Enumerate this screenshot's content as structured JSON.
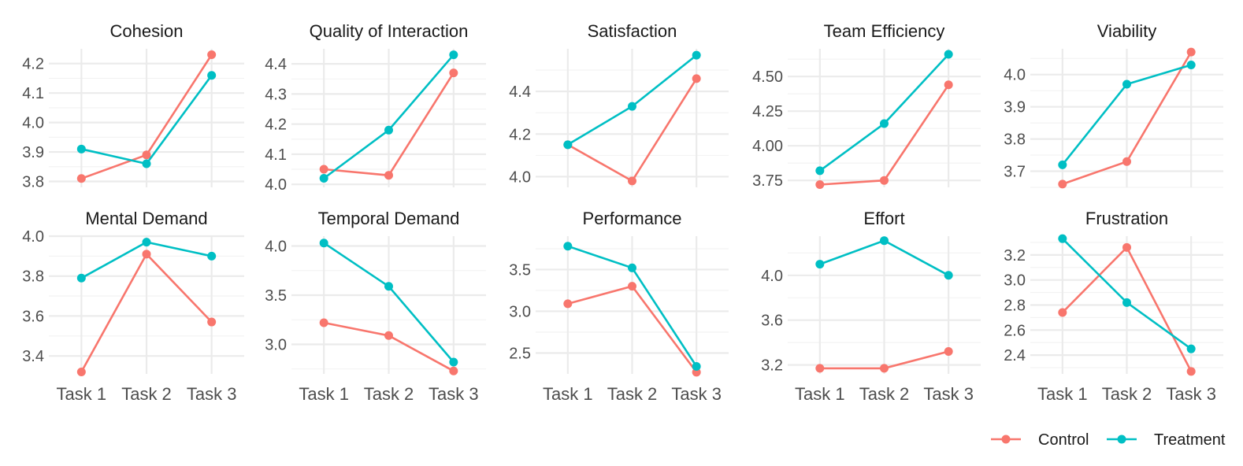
{
  "chart_data": {
    "type": "line",
    "categories": [
      "Task 1",
      "Task 2",
      "Task 3"
    ],
    "series_names": [
      "Control",
      "Treatment"
    ],
    "colors": {
      "Control": "#F8766D",
      "Treatment": "#00BFC4"
    },
    "legend_position": "bottom-right",
    "grid": true,
    "panels": [
      {
        "title": "Cohesion",
        "ylim": [
          3.78,
          4.25
        ],
        "yticks": [
          3.8,
          3.9,
          4.0,
          4.1,
          4.2
        ],
        "ytick_labels": [
          "3.8",
          "3.9",
          "4.0",
          "4.1",
          "4.2"
        ],
        "series": [
          {
            "name": "Control",
            "values": [
              3.81,
              3.89,
              4.23
            ]
          },
          {
            "name": "Treatment",
            "values": [
              3.91,
              3.86,
              4.16
            ]
          }
        ]
      },
      {
        "title": "Quality of Interaction",
        "ylim": [
          3.99,
          4.45
        ],
        "yticks": [
          4.0,
          4.1,
          4.2,
          4.3,
          4.4
        ],
        "ytick_labels": [
          "4.0",
          "4.1",
          "4.2",
          "4.3",
          "4.4"
        ],
        "series": [
          {
            "name": "Control",
            "values": [
              4.05,
              4.03,
              4.37
            ]
          },
          {
            "name": "Treatment",
            "values": [
              4.02,
              4.18,
              4.43
            ]
          }
        ]
      },
      {
        "title": "Satisfaction",
        "ylim": [
          3.95,
          4.6
        ],
        "yticks": [
          4.0,
          4.2,
          4.4
        ],
        "ytick_labels": [
          "4.0",
          "4.2",
          "4.4"
        ],
        "series": [
          {
            "name": "Control",
            "values": [
              4.15,
              3.98,
              4.46
            ]
          },
          {
            "name": "Treatment",
            "values": [
              4.15,
              4.33,
              4.57
            ]
          }
        ]
      },
      {
        "title": "Team Efficiency",
        "ylim": [
          3.7,
          4.7
        ],
        "yticks": [
          3.75,
          4.0,
          4.25,
          4.5
        ],
        "ytick_labels": [
          "3.75",
          "4.00",
          "4.25",
          "4.50"
        ],
        "series": [
          {
            "name": "Control",
            "values": [
              3.72,
              3.75,
              4.44
            ]
          },
          {
            "name": "Treatment",
            "values": [
              3.82,
              4.16,
              4.66
            ]
          }
        ]
      },
      {
        "title": "Viability",
        "ylim": [
          3.65,
          4.08
        ],
        "yticks": [
          3.7,
          3.8,
          3.9,
          4.0
        ],
        "ytick_labels": [
          "3.7",
          "3.8",
          "3.9",
          "4.0"
        ],
        "series": [
          {
            "name": "Control",
            "values": [
              3.66,
              3.73,
              4.07
            ]
          },
          {
            "name": "Treatment",
            "values": [
              3.72,
              3.97,
              4.03
            ]
          }
        ]
      },
      {
        "title": "Mental Demand",
        "ylim": [
          3.31,
          4.0
        ],
        "yticks": [
          3.4,
          3.6,
          3.8,
          4.0
        ],
        "ytick_labels": [
          "3.4",
          "3.6",
          "3.8",
          "4.0"
        ],
        "series": [
          {
            "name": "Control",
            "values": [
              3.32,
              3.91,
              3.57
            ]
          },
          {
            "name": "Treatment",
            "values": [
              3.79,
              3.97,
              3.9
            ]
          }
        ]
      },
      {
        "title": "Temporal Demand",
        "ylim": [
          2.7,
          4.1
        ],
        "yticks": [
          3.0,
          3.5,
          4.0
        ],
        "ytick_labels": [
          "3.0",
          "3.5",
          "4.0"
        ],
        "series": [
          {
            "name": "Control",
            "values": [
              3.22,
              3.09,
              2.73
            ]
          },
          {
            "name": "Treatment",
            "values": [
              4.03,
              3.59,
              2.82
            ]
          }
        ]
      },
      {
        "title": "Performance",
        "ylim": [
          2.25,
          3.9
        ],
        "yticks": [
          2.5,
          3.0,
          3.5
        ],
        "ytick_labels": [
          "2.5",
          "3.0",
          "3.5"
        ],
        "series": [
          {
            "name": "Control",
            "values": [
              3.09,
              3.3,
              2.27
            ]
          },
          {
            "name": "Treatment",
            "values": [
              3.78,
              3.52,
              2.34
            ]
          }
        ]
      },
      {
        "title": "Effort",
        "ylim": [
          3.12,
          4.35
        ],
        "yticks": [
          3.2,
          3.6,
          4.0
        ],
        "ytick_labels": [
          "3.2",
          "3.6",
          "4.0"
        ],
        "series": [
          {
            "name": "Control",
            "values": [
              3.17,
              3.17,
              3.32
            ]
          },
          {
            "name": "Treatment",
            "values": [
              4.1,
              4.31,
              4.0
            ]
          }
        ]
      },
      {
        "title": "Frustration",
        "ylim": [
          2.25,
          3.35
        ],
        "yticks": [
          2.4,
          2.6,
          2.8,
          3.0,
          3.2
        ],
        "ytick_labels": [
          "2.4",
          "2.6",
          "2.8",
          "3.0",
          "3.2"
        ],
        "series": [
          {
            "name": "Control",
            "values": [
              2.74,
              3.26,
              2.27
            ]
          },
          {
            "name": "Treatment",
            "values": [
              3.33,
              2.82,
              2.45
            ]
          }
        ]
      }
    ]
  }
}
